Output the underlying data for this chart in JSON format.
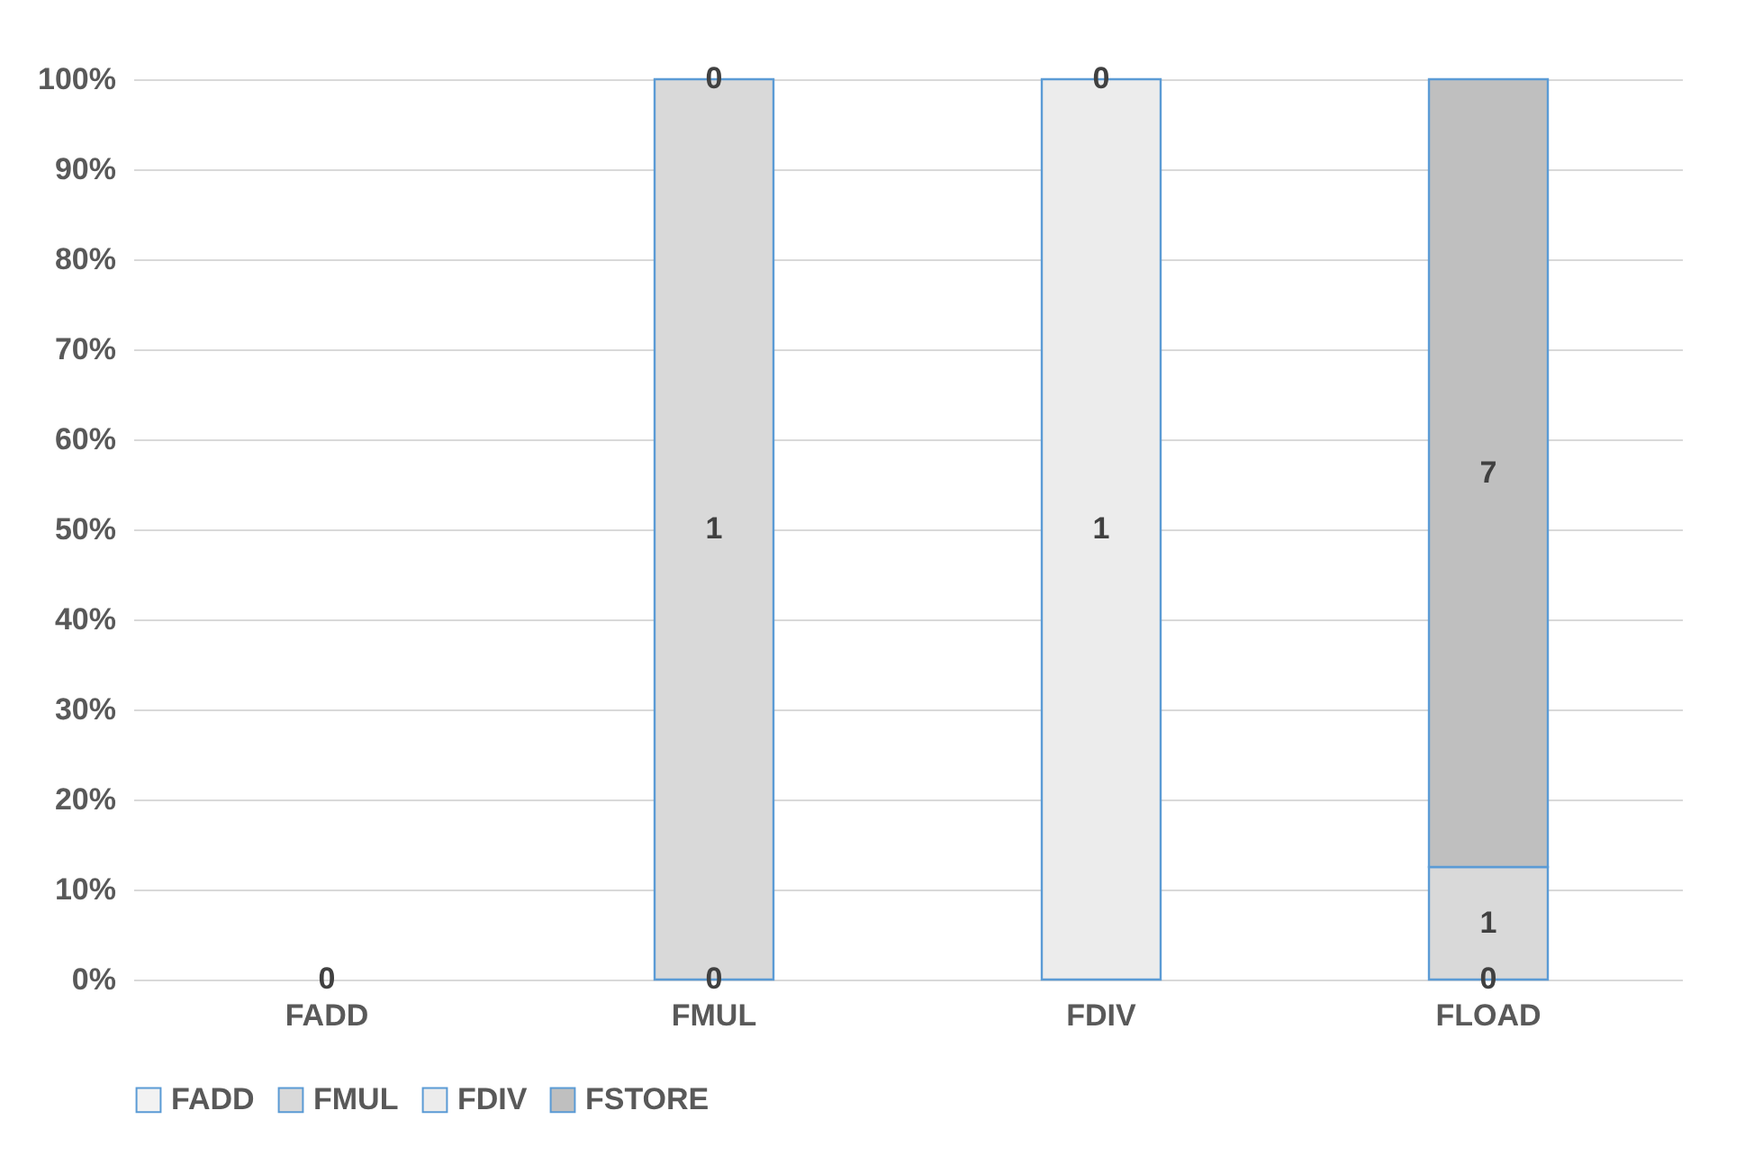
{
  "chart_data": {
    "type": "bar",
    "stacked": true,
    "categories": [
      "FADD",
      "FMUL",
      "FDIV",
      "FLOAD"
    ],
    "series": [
      {
        "name": "FADD",
        "color": "#f2f2f2",
        "values": [
          0,
          0,
          0,
          0
        ]
      },
      {
        "name": "FMUL",
        "color": "#d9d9d9",
        "values": [
          0,
          100,
          0,
          12.5
        ]
      },
      {
        "name": "FDIV",
        "color": "#ececec",
        "values": [
          0,
          0,
          100,
          0
        ]
      },
      {
        "name": "FSTORE",
        "color": "#bfbfbf",
        "values": [
          0,
          0,
          0,
          87.5
        ]
      }
    ],
    "annotations": [
      {
        "text": "0",
        "x": "FADD",
        "y": 0
      },
      {
        "text": "0",
        "x": "FMUL",
        "y": 0
      },
      "1",
      {
        "text": "0",
        "x": "FMUL",
        "y": 100
      },
      "1",
      {
        "text": "0",
        "x": "FDIV",
        "y": 100
      },
      {
        "text": "0",
        "x": "FLOAD",
        "y": 0
      },
      "1",
      "7"
    ],
    "ylim": [
      0,
      100
    ],
    "yticks": [
      {
        "value": 0,
        "label": "0%"
      },
      {
        "value": 10,
        "label": "10%"
      },
      {
        "value": 20,
        "label": "20%"
      },
      {
        "value": 30,
        "label": "30%"
      },
      {
        "value": 40,
        "label": "40%"
      },
      {
        "value": 50,
        "label": "50%"
      },
      {
        "value": 60,
        "label": "60%"
      },
      {
        "value": 70,
        "label": "70%"
      },
      {
        "value": 80,
        "label": "80%"
      },
      {
        "value": 90,
        "label": "90%"
      },
      {
        "value": 100,
        "label": "100%"
      }
    ],
    "grid": "y",
    "legend": "bottom"
  }
}
